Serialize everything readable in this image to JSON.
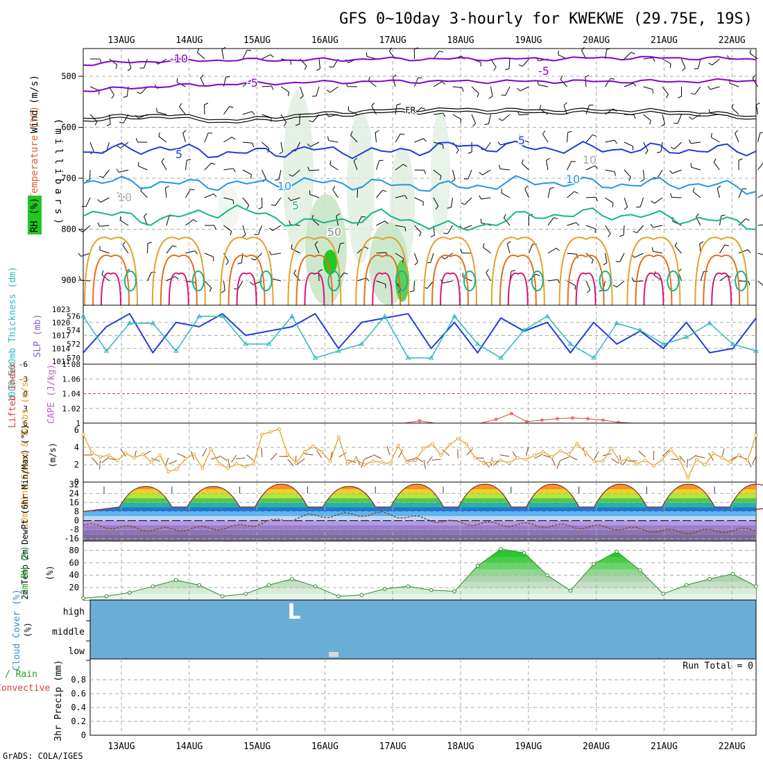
{
  "title": "GFS 0~10day 3-hourly for KWEKWE (29.75E, 19S)",
  "credit": "GrADS: COLA/IGES",
  "dates": [
    "13AUG",
    "14AUG",
    "15AUG",
    "16AUG",
    "17AUG",
    "18AUG",
    "19AUG",
    "20AUG",
    "21AUG",
    "22AUG"
  ],
  "colors": {
    "purple": "#8a00c8",
    "black": "#000000",
    "blue": "#1e3cdc",
    "lightblue": "#1e96e6",
    "teal": "#14b48c",
    "orange": "#e6a028",
    "darkorange": "#e66e14",
    "magenta": "#dc1478",
    "cyan": "#2cb8c0",
    "slpblue": "#1e3cdc",
    "rhgreen": "#22c822",
    "cloud": "#6aaed6",
    "lifted": "#e03c3c",
    "wind": "#e6a028",
    "brown": "#8b4513"
  },
  "chart_data": [
    {
      "id": "upper_air",
      "type": "contour",
      "ylabel_wind": "Wind (m/s)",
      "ylabel_temp": "Temperature (°C)",
      "ylabel_rh": "RH (%)",
      "ylabel_mb": "(millibars)",
      "yticks": [
        "500",
        "600",
        "700",
        "800",
        "900"
      ],
      "contour_labels": [
        "-10",
        "-5",
        "5",
        "FR",
        "5",
        "10",
        "10",
        "-5",
        "5",
        "10",
        "50",
        "10"
      ],
      "series": [
        {
          "name": "-10C isotherm",
          "level_mb": [
            476,
            470,
            468,
            468,
            466,
            466,
            466,
            464,
            464,
            466
          ]
        },
        {
          "name": "-5C isotherm",
          "level_mb": [
            528,
            520,
            515,
            512,
            510,
            510,
            510,
            510,
            510,
            508
          ]
        },
        {
          "name": "freezing level",
          "level_mb": [
            582,
            574,
            586,
            574,
            566,
            564,
            566,
            566,
            568,
            578
          ]
        },
        {
          "name": "5C isotherm",
          "level_mb": [
            648,
            640,
            652,
            644,
            650,
            636,
            640,
            642,
            644,
            645
          ]
        },
        {
          "name": "10C isotherm",
          "level_mb": [
            706,
            710,
            712,
            708,
            712,
            718,
            706,
            712,
            710,
            720
          ]
        },
        {
          "name": "15C isotherm",
          "level_mb": [
            766,
            782,
            760,
            790,
            772,
            800,
            772,
            770,
            778,
            790
          ]
        }
      ]
    },
    {
      "id": "slp_thickness",
      "type": "line",
      "ylabel_left": "1000~500mb Thickness (dm)",
      "ylabel_right": "SLP (mb)",
      "left_ticks": [
        "576",
        "574",
        "572",
        "570"
      ],
      "right_ticks": [
        "1023",
        "1020",
        "1017",
        "1014",
        "1011"
      ],
      "series": [
        {
          "name": "SLP",
          "values": [
            1013,
            1019,
            1022,
            1013,
            1020,
            1019,
            1022,
            1017,
            1018,
            1019,
            1022,
            1014,
            1020,
            1021,
            1022,
            1014,
            1020,
            1013,
            1021,
            1018,
            1020,
            1013,
            1020,
            1015,
            1018,
            1014,
            1020,
            1013,
            1014,
            1021
          ]
        },
        {
          "name": "Thickness",
          "values": [
            576,
            571,
            575,
            575,
            571,
            576,
            576,
            572,
            572,
            576,
            570,
            571,
            572,
            576,
            570,
            570,
            576,
            572,
            570,
            574,
            576,
            572,
            570,
            575,
            574,
            572,
            573,
            575,
            572,
            571
          ]
        }
      ]
    },
    {
      "id": "lifted_cape",
      "type": "line",
      "ylabel_left": "Lifted Index",
      "ylabel_right": "CAPE (J/kg)",
      "left_ticks": [
        "-6",
        "-3",
        "0",
        "3",
        "6"
      ],
      "right_ticks": [
        "1.08",
        "1.06",
        "1.04",
        "1.02",
        "1"
      ],
      "series": [
        {
          "name": "CAPE",
          "values": [
            1,
            1,
            1,
            1,
            1,
            1,
            1,
            1,
            1,
            1,
            1,
            1,
            1,
            1,
            1,
            1.003,
            1,
            1,
            1,
            1,
            1.005,
            1.013,
            1.002,
            1.004,
            1.006,
            1.007,
            1.006,
            1.004,
            1.001,
            1
          ]
        }
      ]
    },
    {
      "id": "wind10m",
      "type": "line",
      "ylabel": "10m Wind Speed & Barbs (m/s)",
      "yticks": [
        "6",
        "4",
        "2",
        "0"
      ],
      "ylim": [
        0,
        6.4
      ],
      "series": [
        {
          "name": "10m wind speed",
          "values": [
            5.5,
            3.4,
            2.9,
            3.1,
            2.5,
            3.3,
            2.8,
            3.2,
            2.3,
            3.1,
            1.2,
            1.5,
            2.7,
            3.2,
            1.6,
            3.8,
            2.1,
            1.6,
            2.1,
            1.8,
            2.1,
            5.5,
            5.8,
            6.1,
            3.2,
            2.2,
            3.5,
            4.1,
            3.5,
            2.4,
            5.2,
            2.1,
            2.6,
            2.0,
            2.4,
            2.3,
            2.1,
            4.2,
            2.3,
            2.5,
            3.9,
            4.4,
            3.1,
            4.3,
            5.0,
            4.4,
            2.8,
            2.2,
            2.3,
            2.5,
            2.2,
            2.8,
            2.6,
            3.1,
            3.5,
            2.9,
            3.6,
            3.2,
            4.4,
            3.4,
            2.4,
            2.4,
            3.9,
            2.4,
            2.7,
            2.1,
            2.5,
            1.9,
            2.6,
            3.7,
            2.6,
            0.5,
            2.6,
            2.0,
            3.3,
            2.8,
            2.3,
            3.1,
            2.5,
            5.4
          ]
        }
      ]
    },
    {
      "id": "temp2m",
      "type": "area",
      "ylabel": "2m Temp 2m DewPt (6hr Min/Max) (°C)",
      "yticks": [
        "32",
        "24",
        "16",
        "8",
        "0",
        "-8",
        "-16"
      ],
      "ylim": [
        -18,
        34
      ],
      "series": [
        {
          "name": "2m temperature max",
          "values": [
            28,
            28,
            30,
            28,
            30,
            30,
            30,
            30,
            30,
            30
          ]
        },
        {
          "name": "2m dewpoint",
          "values": [
            -4,
            -8,
            -6,
            4,
            6,
            -2,
            -4,
            -6,
            -10,
            -8
          ]
        }
      ]
    },
    {
      "id": "rh2m",
      "type": "area",
      "ylabel": "2m RH (%)",
      "yticks": [
        "80",
        "60",
        "40",
        "20"
      ],
      "ylim": [
        0,
        95
      ],
      "series": [
        {
          "name": "2m RH",
          "values": [
            3,
            6,
            12,
            22,
            32,
            24,
            6,
            10,
            24,
            34,
            22,
            6,
            8,
            18,
            22,
            16,
            14,
            55,
            82,
            76,
            40,
            15,
            58,
            78,
            48,
            10,
            24,
            34,
            42,
            22
          ]
        }
      ]
    },
    {
      "id": "cloud_cover",
      "type": "heatmap",
      "ylabel": "Cloud Cover (%)",
      "yticks": [
        "high",
        "middle",
        "low"
      ],
      "annotations": [
        "L"
      ]
    },
    {
      "id": "precip",
      "type": "bar",
      "ylabel_left": "Total / Rain",
      "ylabel_left2": "Convective",
      "ylabel": "3hr Precip (mm)",
      "yticks": [
        "0.8",
        "0.6",
        "0.4",
        "0.2",
        "0"
      ],
      "ylim": [
        0,
        1
      ],
      "run_total_label": "Run Total = 0",
      "values": []
    }
  ]
}
